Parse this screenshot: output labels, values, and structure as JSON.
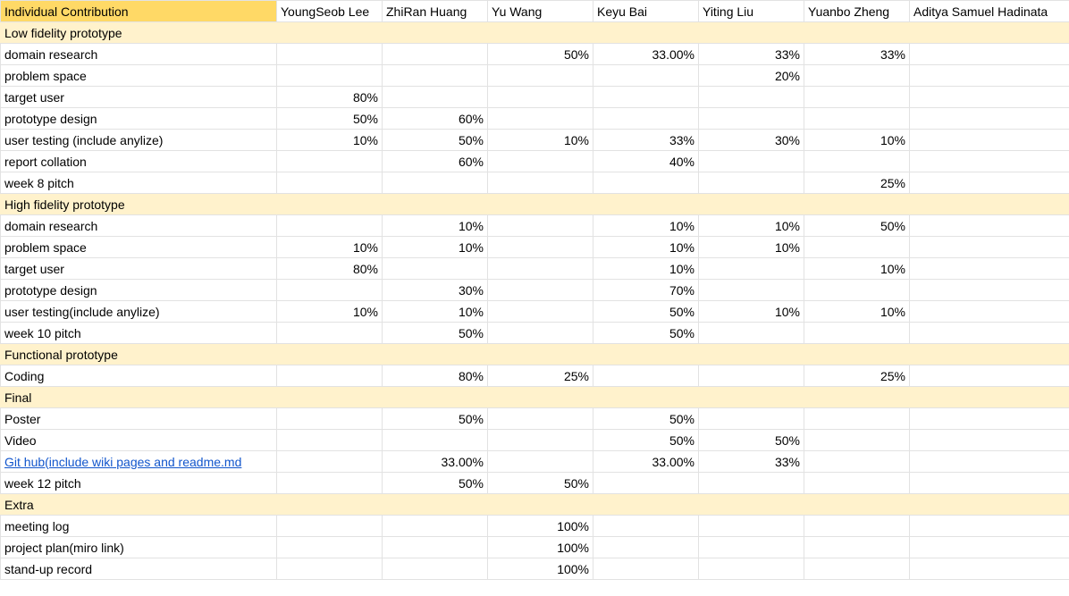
{
  "columns": [
    "Individual Contribution",
    "YoungSeob Lee",
    "ZhiRan Huang",
    "Yu Wang",
    "Keyu Bai",
    "Yiting Liu",
    "Yuanbo Zheng",
    "Aditya Samuel Hadinata"
  ],
  "rows": [
    {
      "kind": "section",
      "label": "Low fidelity prototype"
    },
    {
      "kind": "data",
      "label": "domain research",
      "values": [
        "",
        "",
        "50%",
        "33.00%",
        "33%",
        "33%",
        ""
      ]
    },
    {
      "kind": "data",
      "label": "problem space",
      "values": [
        "",
        "",
        "",
        "",
        "20%",
        "",
        ""
      ]
    },
    {
      "kind": "data",
      "label": "target user",
      "values": [
        "80%",
        "",
        "",
        "",
        "",
        "",
        ""
      ]
    },
    {
      "kind": "data",
      "label": "prototype design",
      "values": [
        "50%",
        "60%",
        "",
        "",
        "",
        "",
        ""
      ]
    },
    {
      "kind": "data",
      "label": "user testing (include anylize)",
      "values": [
        "10%",
        "50%",
        "10%",
        "33%",
        "30%",
        "10%",
        ""
      ]
    },
    {
      "kind": "data",
      "label": "report collation",
      "values": [
        "",
        "60%",
        "",
        "40%",
        "",
        "",
        ""
      ]
    },
    {
      "kind": "data",
      "label": "week 8 pitch",
      "values": [
        "",
        "",
        "",
        "",
        "",
        "25%",
        ""
      ]
    },
    {
      "kind": "section",
      "label": "High fidelity prototype"
    },
    {
      "kind": "data",
      "label": "domain research",
      "values": [
        "",
        "10%",
        "",
        "10%",
        "10%",
        "50%",
        ""
      ]
    },
    {
      "kind": "data",
      "label": "problem space",
      "values": [
        "10%",
        "10%",
        "",
        "10%",
        "10%",
        "",
        ""
      ]
    },
    {
      "kind": "data",
      "label": "target user",
      "values": [
        "80%",
        "",
        "",
        "10%",
        "",
        "10%",
        ""
      ]
    },
    {
      "kind": "data",
      "label": "prototype design",
      "values": [
        "",
        "30%",
        "",
        "70%",
        "",
        "",
        ""
      ]
    },
    {
      "kind": "data",
      "label": "user testing(include anylize)",
      "values": [
        "10%",
        "10%",
        "",
        "50%",
        "10%",
        "10%",
        ""
      ]
    },
    {
      "kind": "data",
      "label": "week 10 pitch",
      "values": [
        "",
        "50%",
        "",
        "50%",
        "",
        "",
        ""
      ]
    },
    {
      "kind": "section",
      "label": "Functional prototype"
    },
    {
      "kind": "data",
      "label": "Coding",
      "values": [
        "",
        "80%",
        "25%",
        "",
        "",
        "25%",
        ""
      ]
    },
    {
      "kind": "section",
      "label": "Final"
    },
    {
      "kind": "data",
      "label": "Poster",
      "values": [
        "",
        "50%",
        "",
        "50%",
        "",
        "",
        ""
      ]
    },
    {
      "kind": "data",
      "label": "Video",
      "values": [
        "",
        "",
        "",
        "50%",
        "50%",
        "",
        ""
      ]
    },
    {
      "kind": "link",
      "label": "Git hub(include wiki pages and readme.md",
      "values": [
        "",
        "33.00%",
        "",
        "33.00%",
        "33%",
        "",
        ""
      ]
    },
    {
      "kind": "data",
      "label": "week 12 pitch",
      "values": [
        "",
        "50%",
        "50%",
        "",
        "",
        "",
        ""
      ]
    },
    {
      "kind": "section",
      "label": "Extra"
    },
    {
      "kind": "data",
      "label": "meeting log",
      "values": [
        "",
        "",
        "100%",
        "",
        "",
        "",
        ""
      ]
    },
    {
      "kind": "data",
      "label": "project plan(miro link)",
      "values": [
        "",
        "",
        "100%",
        "",
        "",
        "",
        ""
      ]
    },
    {
      "kind": "data",
      "label": "stand-up record",
      "values": [
        "",
        "",
        "100%",
        "",
        "",
        "",
        ""
      ]
    }
  ],
  "colors": {
    "header_highlight": "#ffd966",
    "section_fill": "#fff2cc",
    "link": "#1155cc",
    "gridline": "#e2e2e2"
  }
}
